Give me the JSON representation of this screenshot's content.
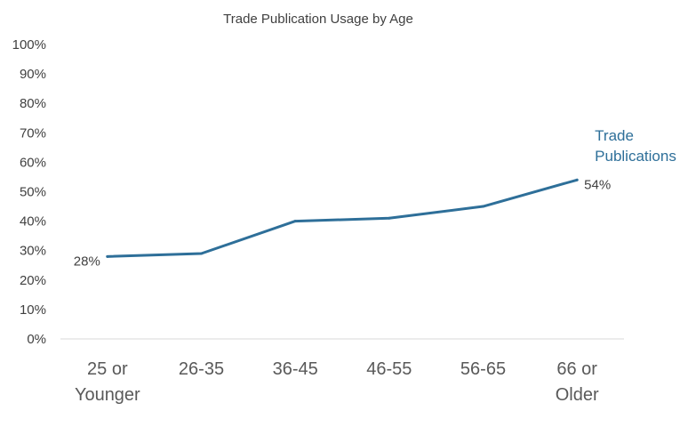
{
  "chart_data": {
    "type": "line",
    "title": "Trade Publication Usage by Age",
    "xlabel": "",
    "ylabel": "",
    "categories": [
      [
        "25 or",
        "Younger"
      ],
      [
        "26-35"
      ],
      [
        "36-45"
      ],
      [
        "46-55"
      ],
      [
        "56-65"
      ],
      [
        "66 or",
        "Older"
      ]
    ],
    "y_ticks": [
      "0%",
      "10%",
      "20%",
      "30%",
      "40%",
      "50%",
      "60%",
      "70%",
      "80%",
      "90%",
      "100%"
    ],
    "ylim": [
      0,
      100
    ],
    "grid": false,
    "series": [
      {
        "name_lines": [
          "Trade",
          "Publications"
        ],
        "values": [
          28,
          29,
          40,
          41,
          45,
          54
        ],
        "color": "#2e6f99"
      }
    ],
    "data_labels": [
      {
        "index": 0,
        "text": "28%"
      },
      {
        "index": 5,
        "text": "54%"
      }
    ]
  }
}
